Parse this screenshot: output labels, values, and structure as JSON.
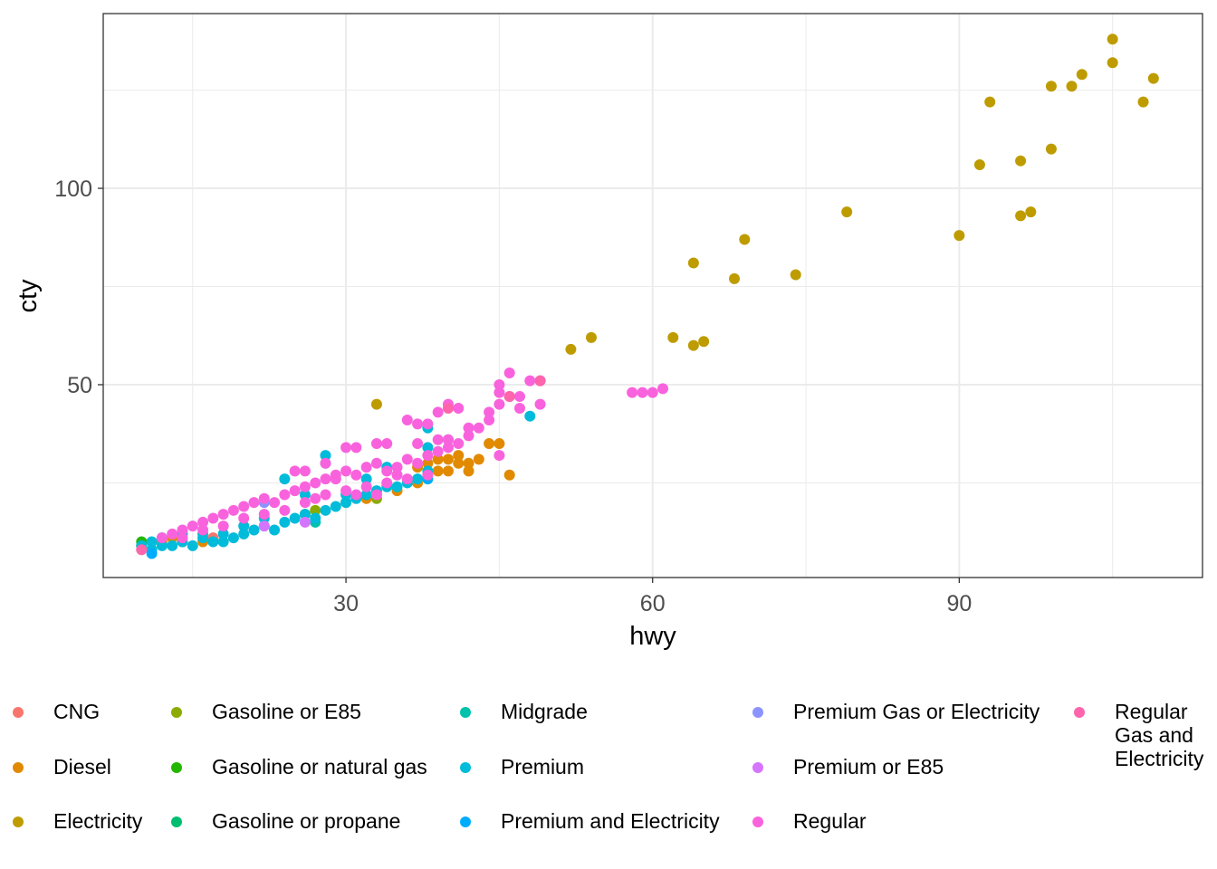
{
  "chart_data": {
    "type": "scatter",
    "xlabel": "hwy",
    "ylabel": "cty",
    "xlim": [
      6.25,
      113.8
    ],
    "ylim": [
      0.9,
      144.5
    ],
    "x_ticks": [
      30,
      60,
      90
    ],
    "y_ticks": [
      50,
      100
    ],
    "grid": true,
    "legend_position": "bottom",
    "series": [
      {
        "name": "CNG",
        "color": "#F8766D",
        "points": [
          [
            10,
            8
          ],
          [
            10,
            9
          ],
          [
            17,
            11
          ],
          [
            14,
            10
          ]
        ]
      },
      {
        "name": "Diesel",
        "color": "#E18A00",
        "points": [
          [
            37,
            29
          ],
          [
            38,
            30
          ],
          [
            39,
            28
          ],
          [
            40,
            31
          ],
          [
            41,
            30
          ],
          [
            42,
            28
          ],
          [
            43,
            31
          ],
          [
            44,
            35
          ],
          [
            45,
            35
          ],
          [
            46,
            27
          ],
          [
            40,
            28
          ],
          [
            41,
            32
          ],
          [
            38,
            27
          ],
          [
            37,
            25
          ],
          [
            35,
            23
          ],
          [
            32,
            21
          ],
          [
            13,
            11
          ],
          [
            16,
            10
          ],
          [
            12,
            10
          ],
          [
            39,
            31
          ],
          [
            42,
            30
          ]
        ]
      },
      {
        "name": "Electricity",
        "color": "#BE9C00",
        "points": [
          [
            105,
            138
          ],
          [
            105,
            132
          ],
          [
            109,
            128
          ],
          [
            102,
            129
          ],
          [
            101,
            126
          ],
          [
            99,
            126
          ],
          [
            93,
            122
          ],
          [
            108,
            122
          ],
          [
            99,
            110
          ],
          [
            92,
            106
          ],
          [
            96,
            107
          ],
          [
            96,
            93
          ],
          [
            97,
            94
          ],
          [
            79,
            94
          ],
          [
            90,
            88
          ],
          [
            69,
            87
          ],
          [
            64,
            81
          ],
          [
            68,
            77
          ],
          [
            74,
            78
          ],
          [
            62,
            62
          ],
          [
            64,
            60
          ],
          [
            65,
            61
          ],
          [
            54,
            62
          ],
          [
            52,
            59
          ],
          [
            33,
            45
          ]
        ]
      },
      {
        "name": "Gasoline or E85",
        "color": "#8CAB00",
        "points": [
          [
            30,
            20
          ],
          [
            33,
            21
          ],
          [
            27,
            18
          ],
          [
            26,
            17
          ]
        ]
      },
      {
        "name": "Gasoline or natural gas",
        "color": "#24B700",
        "points": [
          [
            10,
            10
          ]
        ]
      },
      {
        "name": "Gasoline or propane",
        "color": "#00BE70",
        "points": [
          [
            10,
            9
          ]
        ]
      },
      {
        "name": "Midgrade",
        "color": "#00C1AB",
        "points": [
          [
            27,
            15
          ]
        ]
      },
      {
        "name": "Premium",
        "color": "#00BBDA",
        "points": [
          [
            10,
            9
          ],
          [
            11,
            8
          ],
          [
            11,
            10
          ],
          [
            12,
            9
          ],
          [
            13,
            9
          ],
          [
            14,
            10
          ],
          [
            15,
            9
          ],
          [
            16,
            11
          ],
          [
            17,
            10
          ],
          [
            18,
            12
          ],
          [
            19,
            11
          ],
          [
            20,
            12
          ],
          [
            21,
            13
          ],
          [
            22,
            14
          ],
          [
            23,
            13
          ],
          [
            24,
            15
          ],
          [
            25,
            16
          ],
          [
            26,
            17
          ],
          [
            27,
            16
          ],
          [
            28,
            18
          ],
          [
            29,
            19
          ],
          [
            30,
            20
          ],
          [
            31,
            21
          ],
          [
            32,
            22
          ],
          [
            33,
            23
          ],
          [
            34,
            24
          ],
          [
            35,
            24
          ],
          [
            36,
            25
          ],
          [
            37,
            26
          ],
          [
            38,
            28
          ],
          [
            38,
            34
          ],
          [
            38,
            39
          ],
          [
            48,
            42
          ],
          [
            24,
            26
          ],
          [
            28,
            32
          ],
          [
            28,
            30
          ],
          [
            26,
            22
          ],
          [
            30,
            22
          ],
          [
            32,
            26
          ],
          [
            34,
            29
          ],
          [
            12,
            11
          ],
          [
            14,
            12
          ],
          [
            16,
            12
          ],
          [
            20,
            14
          ],
          [
            22,
            16
          ],
          [
            18,
            10
          ]
        ]
      },
      {
        "name": "Premium and Electricity",
        "color": "#00ACFC",
        "points": [
          [
            38,
            26
          ],
          [
            11,
            7
          ]
        ]
      },
      {
        "name": "Premium Gas or Electricity",
        "color": "#8B93FF",
        "points": [
          [
            40,
            36
          ],
          [
            22,
            20
          ]
        ]
      },
      {
        "name": "Premium or E85",
        "color": "#D575FE",
        "points": [
          [
            22,
            14
          ],
          [
            26,
            15
          ]
        ]
      },
      {
        "name": "Regular",
        "color": "#F962DD",
        "points": [
          [
            12,
            11
          ],
          [
            13,
            12
          ],
          [
            14,
            13
          ],
          [
            15,
            14
          ],
          [
            16,
            15
          ],
          [
            17,
            16
          ],
          [
            18,
            17
          ],
          [
            19,
            18
          ],
          [
            20,
            19
          ],
          [
            21,
            20
          ],
          [
            22,
            21
          ],
          [
            23,
            20
          ],
          [
            24,
            22
          ],
          [
            25,
            23
          ],
          [
            26,
            24
          ],
          [
            27,
            25
          ],
          [
            28,
            26
          ],
          [
            29,
            27
          ],
          [
            30,
            28
          ],
          [
            31,
            27
          ],
          [
            32,
            29
          ],
          [
            33,
            30
          ],
          [
            34,
            28
          ],
          [
            35,
            29
          ],
          [
            36,
            31
          ],
          [
            37,
            30
          ],
          [
            38,
            32
          ],
          [
            39,
            33
          ],
          [
            40,
            34
          ],
          [
            41,
            35
          ],
          [
            42,
            37
          ],
          [
            43,
            39
          ],
          [
            44,
            41
          ],
          [
            45,
            45
          ],
          [
            46,
            47
          ],
          [
            47,
            47
          ],
          [
            48,
            51
          ],
          [
            49,
            51
          ],
          [
            46,
            53
          ],
          [
            45,
            50
          ],
          [
            45,
            48
          ],
          [
            49,
            45
          ],
          [
            47,
            44
          ],
          [
            58,
            48
          ],
          [
            59,
            48
          ],
          [
            60,
            48
          ],
          [
            61,
            49
          ],
          [
            25,
            28
          ],
          [
            26,
            28
          ],
          [
            28,
            30
          ],
          [
            30,
            34
          ],
          [
            31,
            34
          ],
          [
            33,
            35
          ],
          [
            34,
            35
          ],
          [
            36,
            41
          ],
          [
            37,
            40
          ],
          [
            38,
            40
          ],
          [
            39,
            43
          ],
          [
            40,
            45
          ],
          [
            41,
            44
          ],
          [
            42,
            39
          ],
          [
            44,
            43
          ],
          [
            45,
            32
          ],
          [
            20,
            16
          ],
          [
            22,
            17
          ],
          [
            24,
            18
          ],
          [
            26,
            20
          ],
          [
            28,
            22
          ],
          [
            30,
            23
          ],
          [
            32,
            24
          ],
          [
            34,
            25
          ],
          [
            36,
            26
          ],
          [
            38,
            27
          ],
          [
            18,
            14
          ],
          [
            16,
            13
          ],
          [
            14,
            11
          ],
          [
            27,
            21
          ],
          [
            29,
            26
          ],
          [
            31,
            22
          ],
          [
            33,
            22
          ],
          [
            35,
            27
          ],
          [
            37,
            35
          ],
          [
            39,
            36
          ],
          [
            40,
            36
          ]
        ]
      },
      {
        "name": "Regular Gas and Electricity",
        "color": "#FF65AC",
        "points": [
          [
            49,
            51
          ],
          [
            46,
            47
          ],
          [
            40,
            44
          ],
          [
            10,
            8
          ]
        ]
      }
    ]
  }
}
